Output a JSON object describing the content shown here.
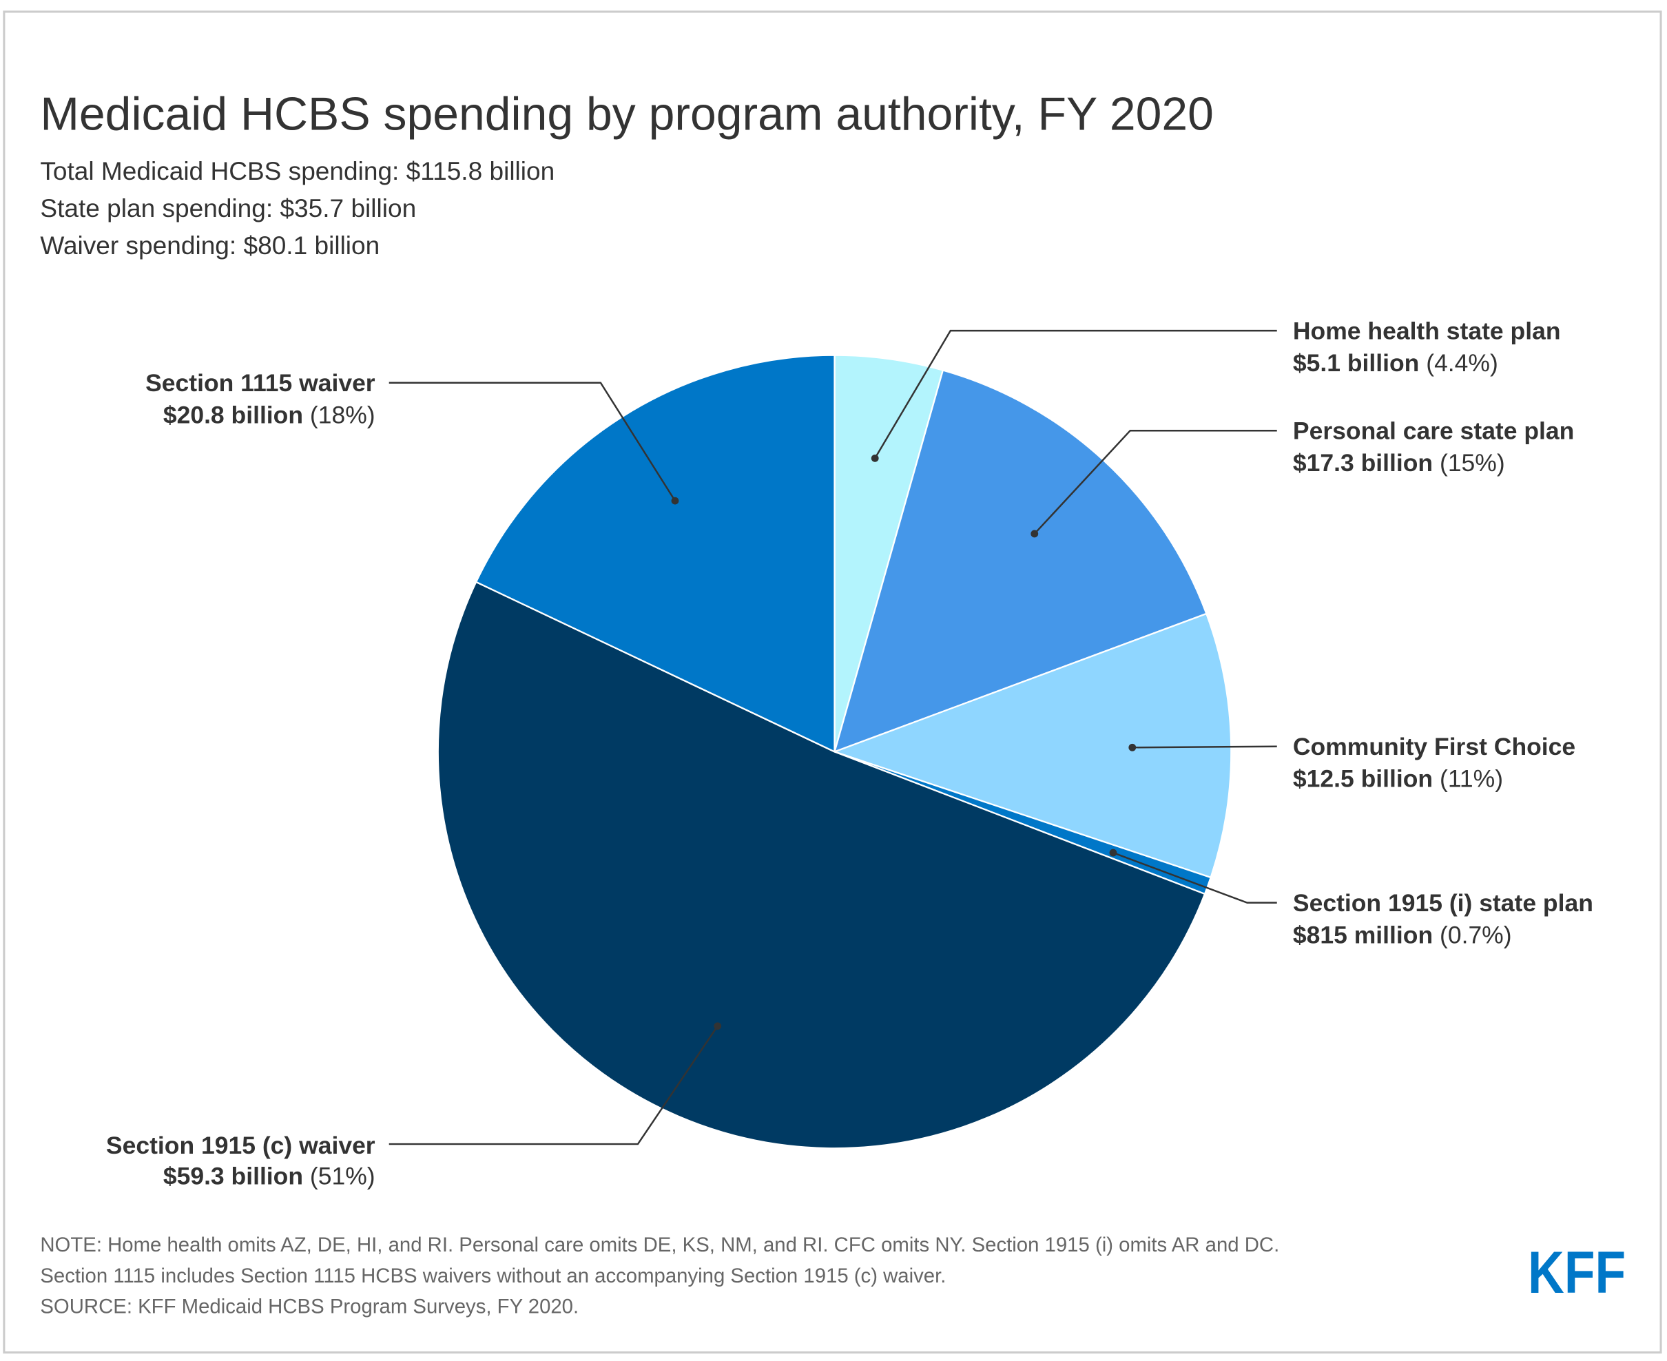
{
  "title": "Medicaid HCBS spending by program authority, FY 2020",
  "subtitle_lines": [
    "Total Medicaid HCBS spending: $115.8 billion",
    "State plan spending: $35.7 billion",
    "Waiver spending: $80.1 billion"
  ],
  "chart_data": {
    "type": "pie",
    "title": "Medicaid HCBS spending by program authority, FY 2020",
    "unit": "billion $",
    "start_angle": "top, clockwise",
    "slices": [
      {
        "name": "Home health state plan",
        "value": 5.1,
        "value_label": "$5.1 billion",
        "pct_label": "(4.4%)",
        "color": "#b3f4fd"
      },
      {
        "name": "Personal care state plan",
        "value": 17.3,
        "value_label": "$17.3 billion",
        "pct_label": "(15%)",
        "color": "#4597e9"
      },
      {
        "name": "Community First Choice",
        "value": 12.5,
        "value_label": "$12.5 billion",
        "pct_label": "(11%)",
        "color": "#8fd6ff"
      },
      {
        "name": "Section 1915 (i) state plan",
        "value": 0.815,
        "value_label": "$815 million",
        "pct_label": "(0.7%)",
        "color": "#0077c8"
      },
      {
        "name": "Section 1915 (c) waiver",
        "value": 59.3,
        "value_label": "$59.3 billion",
        "pct_label": "(51%)",
        "color": "#003a63"
      },
      {
        "name": "Section 1115 waiver",
        "value": 20.8,
        "value_label": "$20.8 billion",
        "pct_label": "(18%)",
        "color": "#0077c8"
      }
    ]
  },
  "notes": [
    "NOTE: Home health omits AZ, DE, HI, and RI. Personal care omits DE, KS, NM, and RI. CFC omits NY. Section 1915 (i) omits AR and DC.",
    "Section 1115 includes Section 1115 HCBS waivers without an accompanying Section 1915 (c) waiver.",
    "SOURCE: KFF Medicaid HCBS Program Surveys, FY 2020."
  ],
  "logo": "KFF",
  "logo_color": "#0077c8"
}
